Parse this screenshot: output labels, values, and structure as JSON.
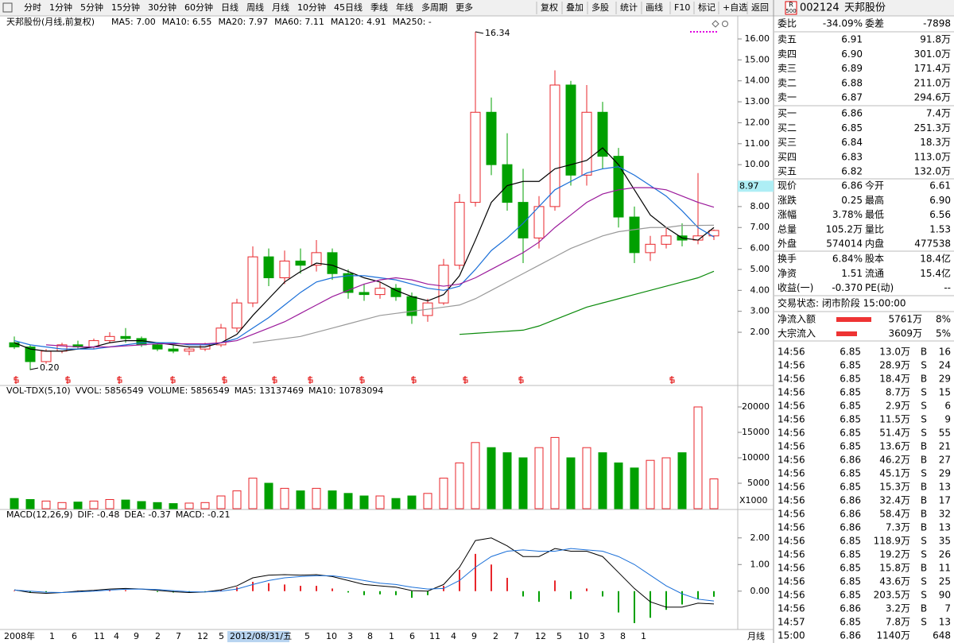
{
  "toolbar": {
    "tabs": [
      "分时",
      "1分钟",
      "5分钟",
      "15分钟",
      "30分钟",
      "60分钟",
      "日线",
      "周线",
      "月线",
      "10分钟",
      "45日线",
      "季线",
      "年线",
      "多周期",
      "更多"
    ],
    "active": 8,
    "buttons": [
      "复权",
      "叠加",
      "多股",
      "统计",
      "画线",
      "F10",
      "标记",
      "+自选",
      "返回"
    ]
  },
  "chart_data": {
    "type": "candlestick",
    "title": "天邦股份(月线,前复权)",
    "up_color": "#e8262b",
    "down_color": "#00a000",
    "ohlc": [
      [
        1.5,
        1.8,
        1.2,
        1.3
      ],
      [
        1.3,
        1.4,
        0.2,
        0.6
      ],
      [
        0.6,
        1.2,
        0.5,
        1.1
      ],
      [
        1.1,
        1.5,
        1.0,
        1.4
      ],
      [
        1.4,
        1.6,
        1.2,
        1.3
      ],
      [
        1.3,
        1.7,
        1.2,
        1.6
      ],
      [
        1.6,
        2.0,
        1.5,
        1.8
      ],
      [
        1.8,
        2.2,
        1.5,
        1.7
      ],
      [
        1.7,
        1.8,
        1.3,
        1.4
      ],
      [
        1.4,
        1.5,
        1.1,
        1.2
      ],
      [
        1.2,
        1.4,
        1.0,
        1.1
      ],
      [
        1.1,
        1.3,
        0.9,
        1.2
      ],
      [
        1.2,
        1.5,
        1.1,
        1.4
      ],
      [
        1.4,
        2.4,
        1.3,
        2.2
      ],
      [
        2.2,
        3.6,
        2.0,
        3.4
      ],
      [
        3.4,
        6.1,
        3.2,
        5.6
      ],
      [
        5.6,
        6.0,
        4.2,
        4.6
      ],
      [
        4.6,
        5.9,
        4.3,
        5.4
      ],
      [
        5.4,
        6.0,
        4.8,
        5.2
      ],
      [
        5.2,
        6.4,
        4.9,
        5.8
      ],
      [
        5.8,
        6.0,
        4.5,
        4.8
      ],
      [
        4.8,
        5.0,
        3.6,
        3.9
      ],
      [
        3.9,
        4.3,
        3.5,
        3.8
      ],
      [
        3.8,
        4.4,
        3.6,
        4.1
      ],
      [
        4.1,
        4.3,
        3.5,
        3.7
      ],
      [
        3.7,
        3.9,
        2.4,
        2.8
      ],
      [
        2.8,
        3.6,
        2.5,
        3.4
      ],
      [
        3.4,
        5.5,
        3.3,
        5.2
      ],
      [
        5.2,
        8.6,
        5.0,
        8.2
      ],
      [
        8.2,
        16.34,
        8.0,
        12.5
      ],
      [
        12.5,
        13.2,
        9.5,
        10.0
      ],
      [
        10.0,
        11.5,
        7.8,
        8.2
      ],
      [
        8.2,
        9.8,
        5.3,
        6.5
      ],
      [
        6.5,
        8.5,
        6.0,
        8.0
      ],
      [
        8.0,
        14.5,
        7.8,
        13.8
      ],
      [
        13.8,
        14.0,
        9.0,
        9.5
      ],
      [
        9.5,
        13.8,
        9.0,
        12.5
      ],
      [
        12.5,
        13.0,
        9.8,
        10.4
      ],
      [
        10.4,
        10.8,
        7.0,
        7.5
      ],
      [
        7.5,
        8.0,
        5.3,
        5.8
      ],
      [
        5.8,
        6.6,
        5.4,
        6.2
      ],
      [
        6.2,
        7.0,
        6.0,
        6.6
      ],
      [
        6.6,
        7.2,
        6.1,
        6.4
      ],
      [
        6.4,
        9.6,
        6.2,
        6.6
      ],
      [
        6.6,
        6.9,
        6.4,
        6.86
      ]
    ],
    "ma": [
      {
        "label": "MA5: 7.00",
        "color": "#000000",
        "values": [
          1.5,
          1.2,
          1.1,
          1.1,
          1.2,
          1.3,
          1.5,
          1.6,
          1.6,
          1.5,
          1.4,
          1.3,
          1.3,
          1.5,
          1.9,
          2.8,
          3.6,
          4.4,
          4.9,
          5.3,
          5.2,
          4.9,
          4.6,
          4.4,
          4.0,
          3.7,
          3.5,
          3.8,
          4.7,
          6.4,
          8.2,
          9.0,
          9.2,
          9.2,
          9.8,
          10.0,
          10.2,
          10.8,
          10.0,
          8.8,
          7.6,
          7.0,
          6.5,
          6.4,
          7.0
        ]
      },
      {
        "label": "MA10: 6.55",
        "color": "#1a6fd8",
        "values": [
          1.6,
          1.4,
          1.3,
          1.2,
          1.2,
          1.2,
          1.3,
          1.4,
          1.5,
          1.5,
          1.5,
          1.4,
          1.4,
          1.5,
          1.7,
          2.2,
          2.7,
          3.3,
          3.9,
          4.4,
          4.6,
          4.7,
          4.7,
          4.6,
          4.5,
          4.3,
          4.1,
          4.0,
          4.2,
          5.0,
          5.9,
          6.5,
          7.2,
          8.0,
          8.8,
          9.2,
          9.6,
          9.8,
          9.9,
          9.5,
          9.0,
          8.5,
          7.8,
          7.0,
          6.55
        ]
      },
      {
        "label": "MA20: 7.97",
        "color": "#9b1a9b",
        "values": [
          null,
          null,
          1.4,
          1.35,
          1.3,
          1.3,
          1.3,
          1.35,
          1.4,
          1.45,
          1.45,
          1.45,
          1.45,
          1.5,
          1.6,
          1.9,
          2.2,
          2.5,
          2.9,
          3.3,
          3.7,
          4.0,
          4.3,
          4.5,
          4.6,
          4.5,
          4.3,
          4.2,
          4.3,
          4.6,
          5.0,
          5.4,
          5.8,
          6.3,
          7.0,
          7.6,
          8.2,
          8.6,
          8.8,
          8.9,
          8.9,
          8.8,
          8.5,
          8.2,
          7.97
        ]
      },
      {
        "label": "MA60: 7.11",
        "color": "#999999",
        "values": [
          null,
          null,
          null,
          null,
          null,
          null,
          null,
          null,
          null,
          null,
          null,
          null,
          null,
          null,
          null,
          1.5,
          1.6,
          1.7,
          1.8,
          2.0,
          2.2,
          2.4,
          2.6,
          2.8,
          2.9,
          3.0,
          3.1,
          3.2,
          3.3,
          3.6,
          4.0,
          4.4,
          4.8,
          5.2,
          5.6,
          6.0,
          6.3,
          6.6,
          6.8,
          6.9,
          7.0,
          7.0,
          7.1,
          7.1,
          7.11
        ]
      },
      {
        "label": "MA120: 4.91",
        "color": "#0a8a0a",
        "values": [
          null,
          null,
          null,
          null,
          null,
          null,
          null,
          null,
          null,
          null,
          null,
          null,
          null,
          null,
          null,
          null,
          null,
          null,
          null,
          null,
          null,
          null,
          null,
          null,
          null,
          null,
          null,
          null,
          1.9,
          1.95,
          2.0,
          2.05,
          2.1,
          2.3,
          2.6,
          2.9,
          3.2,
          3.4,
          3.6,
          3.8,
          4.0,
          4.2,
          4.4,
          4.6,
          4.91
        ]
      },
      {
        "label": "MA250: -",
        "color": "#00b4c8"
      }
    ],
    "ylim": [
      -0.54,
      17.1
    ],
    "yticks": [
      {
        "value": 2,
        "label": "2.00"
      },
      {
        "value": 3,
        "label": "3.00"
      },
      {
        "value": 4,
        "label": "4.00"
      },
      {
        "value": 5,
        "label": "5.00"
      },
      {
        "value": 6,
        "label": "6.00"
      },
      {
        "value": 7,
        "label": "7.00"
      },
      {
        "value": 8,
        "label": "8.00"
      },
      {
        "value": 9,
        "label": "9.00"
      },
      {
        "value": 10,
        "label": "10.00"
      },
      {
        "value": 11,
        "label": "11.00"
      },
      {
        "value": 12,
        "label": "12.00"
      },
      {
        "value": 13,
        "label": "13.00"
      },
      {
        "value": 14,
        "label": "14.00"
      },
      {
        "value": 15,
        "label": "15.00"
      },
      {
        "value": 16,
        "label": "16.00"
      }
    ],
    "price_tag": 8.97,
    "high_label": 16.34,
    "low_label": {
      "value": 0.2,
      "label": "0.20"
    },
    "x_axis_labels": [
      "2008年",
      "1",
      "6",
      "11",
      "4",
      "9",
      "2",
      "7",
      "12",
      "5",
      "2012/08/31/五",
      "5",
      "10",
      "3",
      "8",
      "1",
      "6",
      "11",
      "4",
      "9",
      "2",
      "7",
      "12",
      "5",
      "10",
      "3",
      "8",
      "1"
    ],
    "period": "月线",
    "volume": {
      "header": [
        "VOL-TDX(5,10)",
        "VVOL: 5856549",
        "VOLUME: 5856549",
        "MA5: 13137469",
        "MA10: 10783094"
      ],
      "values": [
        2000,
        1800,
        1500,
        1200,
        1300,
        1500,
        1800,
        1700,
        1400,
        1200,
        1000,
        1100,
        1200,
        2500,
        3500,
        6000,
        5000,
        4000,
        3500,
        4000,
        3500,
        3000,
        2500,
        2500,
        2000,
        2500,
        3000,
        6000,
        9000,
        13000,
        12000,
        11000,
        10000,
        12000,
        14000,
        10000,
        12000,
        11000,
        9000,
        8000,
        9500,
        10000,
        11000,
        20000,
        5856.549
      ],
      "ylim": [
        0,
        21875
      ],
      "yticks": [
        5000,
        10000,
        15000,
        20000
      ],
      "unit": "X1000"
    },
    "macd": {
      "header": [
        "MACD(12,26,9)",
        "DIF: -0.48",
        "DEA: -0.37",
        "MACD: -0.21"
      ],
      "hist": [
        0.02,
        -0.05,
        -0.04,
        0.0,
        0.02,
        0.03,
        0.05,
        0.04,
        0.0,
        -0.03,
        -0.05,
        -0.04,
        -0.02,
        0.05,
        0.15,
        0.35,
        0.3,
        0.25,
        0.2,
        0.2,
        0.1,
        -0.05,
        -0.15,
        -0.12,
        -0.15,
        -0.25,
        -0.15,
        0.2,
        0.8,
        1.4,
        1.0,
        0.5,
        -0.2,
        -0.4,
        0.4,
        -0.3,
        0.1,
        -0.2,
        -0.8,
        -1.2,
        -1.0,
        -0.7,
        -0.5,
        -0.3,
        -0.21
      ],
      "dif": [
        0.05,
        -0.05,
        -0.08,
        -0.05,
        0.0,
        0.03,
        0.08,
        0.1,
        0.08,
        0.03,
        -0.02,
        -0.05,
        -0.03,
        0.05,
        0.2,
        0.5,
        0.6,
        0.62,
        0.6,
        0.62,
        0.55,
        0.4,
        0.25,
        0.2,
        0.15,
        0.02,
        0.0,
        0.25,
        0.9,
        1.9,
        2.0,
        1.7,
        1.3,
        1.3,
        1.6,
        1.5,
        1.5,
        1.3,
        0.7,
        0.1,
        -0.4,
        -0.6,
        -0.6,
        -0.45,
        -0.48
      ],
      "dea": [
        0.04,
        0.0,
        -0.04,
        -0.05,
        -0.03,
        0.0,
        0.04,
        0.07,
        0.08,
        0.06,
        0.02,
        -0.02,
        -0.03,
        0.0,
        0.08,
        0.25,
        0.4,
        0.5,
        0.55,
        0.58,
        0.58,
        0.5,
        0.4,
        0.3,
        0.25,
        0.15,
        0.08,
        0.1,
        0.4,
        0.9,
        1.3,
        1.5,
        1.55,
        1.5,
        1.5,
        1.6,
        1.55,
        1.5,
        1.3,
        1.0,
        0.6,
        0.2,
        -0.1,
        -0.3,
        -0.37
      ],
      "ylim": [
        -1.38,
        2.62
      ],
      "yticks": [
        {
          "value": 0,
          "label": "0.00"
        },
        {
          "value": 1,
          "label": "1.00"
        },
        {
          "value": 2,
          "label": "2.00"
        }
      ]
    }
  },
  "quote": {
    "badge": [
      "R",
      "500"
    ],
    "code": "002124",
    "name": "天邦股份",
    "commission": [
      "委比",
      "-34.09%",
      "委差",
      "-7898"
    ],
    "asks": [
      [
        "卖五",
        "6.91",
        "91.8万"
      ],
      [
        "卖四",
        "6.90",
        "301.0万"
      ],
      [
        "卖三",
        "6.89",
        "171.4万"
      ],
      [
        "卖二",
        "6.88",
        "211.0万"
      ],
      [
        "卖一",
        "6.87",
        "294.6万"
      ]
    ],
    "bids": [
      [
        "买一",
        "6.86",
        "7.4万"
      ],
      [
        "买二",
        "6.85",
        "251.3万"
      ],
      [
        "买三",
        "6.84",
        "18.3万"
      ],
      [
        "买四",
        "6.83",
        "113.0万"
      ],
      [
        "买五",
        "6.82",
        "132.0万"
      ]
    ],
    "stats": [
      [
        "现价",
        "6.86",
        "今开",
        "6.61"
      ],
      [
        "涨跌",
        "0.25",
        "最高",
        "6.90"
      ],
      [
        "涨幅",
        "3.78%",
        "最低",
        "6.56"
      ],
      [
        "总量",
        "105.2万",
        "量比",
        "1.53"
      ],
      [
        "外盘",
        "574014",
        "内盘",
        "477538"
      ]
    ],
    "fundamentals": [
      [
        "换手",
        "6.84%",
        "股本",
        "18.4亿"
      ],
      [
        "净资",
        "1.51",
        "流通",
        "15.4亿"
      ],
      [
        "收益(一)",
        "-0.370",
        "PE(动)",
        "--"
      ]
    ],
    "status": "交易状态: 闭市阶段 15:00:00",
    "flows": [
      [
        "净流入额",
        "5761万",
        "8%"
      ],
      [
        "大宗流入",
        "3609万",
        "5%"
      ]
    ],
    "trades": [
      {
        "time": "14:56",
        "price": "6.85",
        "volume": "13.0万",
        "side": "B",
        "count": "16"
      },
      {
        "time": "14:56",
        "price": "6.85",
        "volume": "28.9万",
        "side": "S",
        "count": "24"
      },
      {
        "time": "14:56",
        "price": "6.85",
        "volume": "18.4万",
        "side": "B",
        "count": "29"
      },
      {
        "time": "14:56",
        "price": "6.85",
        "volume": "8.7万",
        "side": "S",
        "count": "15"
      },
      {
        "time": "14:56",
        "price": "6.85",
        "volume": "2.9万",
        "side": "S",
        "count": "6"
      },
      {
        "time": "14:56",
        "price": "6.85",
        "volume": "11.5万",
        "side": "S",
        "count": "9"
      },
      {
        "time": "14:56",
        "price": "6.85",
        "volume": "51.4万",
        "side": "S",
        "count": "55",
        "big": true
      },
      {
        "time": "14:56",
        "price": "6.85",
        "volume": "13.6万",
        "side": "B",
        "count": "21"
      },
      {
        "time": "14:56",
        "price": "6.86",
        "volume": "46.2万",
        "side": "B",
        "count": "27",
        "big": true
      },
      {
        "time": "14:56",
        "price": "6.85",
        "volume": "45.1万",
        "side": "S",
        "count": "29",
        "big": true
      },
      {
        "time": "14:56",
        "price": "6.85",
        "volume": "15.3万",
        "side": "B",
        "count": "13"
      },
      {
        "time": "14:56",
        "price": "6.86",
        "volume": "32.4万",
        "side": "B",
        "count": "17"
      },
      {
        "time": "14:56",
        "price": "6.86",
        "volume": "58.4万",
        "side": "B",
        "count": "32",
        "big": true
      },
      {
        "time": "14:56",
        "price": "6.86",
        "volume": "7.3万",
        "side": "B",
        "count": "13"
      },
      {
        "time": "14:56",
        "price": "6.85",
        "volume": "118.9万",
        "side": "S",
        "count": "35",
        "big": true
      },
      {
        "time": "14:56",
        "price": "6.85",
        "volume": "19.2万",
        "side": "S",
        "count": "26"
      },
      {
        "time": "14:56",
        "price": "6.85",
        "volume": "15.8万",
        "side": "B",
        "count": "11"
      },
      {
        "time": "14:56",
        "price": "6.85",
        "volume": "43.6万",
        "side": "S",
        "count": "25",
        "big": true
      },
      {
        "time": "14:56",
        "price": "6.85",
        "volume": "203.5万",
        "side": "S",
        "count": "90",
        "big": true
      },
      {
        "time": "14:56",
        "price": "6.86",
        "volume": "3.2万",
        "side": "B",
        "count": "7"
      },
      {
        "time": "14:57",
        "price": "6.85",
        "volume": "7.8万",
        "side": "S",
        "count": "13"
      },
      {
        "time": "15:00",
        "price": "6.86",
        "volume": "1140万",
        "count": "648",
        "big": true
      }
    ]
  }
}
